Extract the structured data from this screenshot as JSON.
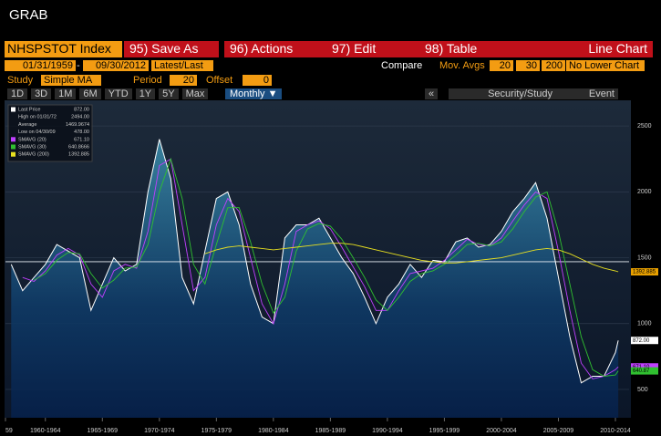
{
  "header": {
    "title": "GRAB"
  },
  "toolbar": {
    "security": "NHSPSTOT Index",
    "buttons": [
      "95) Save As",
      "96) Actions",
      "97) Edit",
      "98) Table"
    ],
    "view": "Line Chart",
    "start_date": "01/31/1959",
    "dash": "-",
    "end_date": "09/30/2012",
    "mode": "Latest/Last",
    "compare": "Compare",
    "mov_avgs": "Mov. Avgs",
    "ma_periods": [
      "20",
      "30",
      "200"
    ],
    "lower": "No Lower Chart",
    "study_label": "Study",
    "study": "Simple MA",
    "period_label": "Period",
    "period": "20",
    "offset_label": "Offset",
    "offset": "0",
    "ranges": [
      "1D",
      "3D",
      "1M",
      "6M",
      "YTD",
      "1Y",
      "5Y",
      "Max"
    ],
    "frequency": "Monthly ▼",
    "collapse": "«",
    "security_study": "Security/Study",
    "event": "Event"
  },
  "chart_data": {
    "type": "line",
    "x": [
      1959.5,
      1960.5,
      1961.5,
      1962.5,
      1963.5,
      1964.5,
      1965.5,
      1966.5,
      1967.5,
      1968.5,
      1969.5,
      1970.5,
      1971.5,
      1972.5,
      1973.5,
      1974.5,
      1975.5,
      1976.5,
      1977.5,
      1978.5,
      1979.5,
      1980.5,
      1981.5,
      1982.5,
      1983.5,
      1984.5,
      1985.5,
      1986.5,
      1987.5,
      1988.5,
      1989.5,
      1990.5,
      1991.5,
      1992.5,
      1993.5,
      1994.5,
      1995.5,
      1996.5,
      1997.5,
      1998.5,
      1999.5,
      2000.5,
      2001.5,
      2002.5,
      2003.5,
      2004.5,
      2005.5,
      2006.5,
      2007.5,
      2008.5,
      2009.5,
      2010.5,
      2011.5,
      2012.5,
      2012.75
    ],
    "series": [
      {
        "name": "Last Price",
        "color": "#ffffff",
        "values": [
          1450,
          1250,
          1350,
          1450,
          1600,
          1550,
          1500,
          1100,
          1300,
          1500,
          1400,
          1450,
          2000,
          2400,
          2100,
          1350,
          1150,
          1550,
          1950,
          2000,
          1750,
          1300,
          1050,
          1000,
          1650,
          1750,
          1750,
          1800,
          1650,
          1500,
          1380,
          1200,
          1000,
          1200,
          1300,
          1450,
          1350,
          1480,
          1470,
          1620,
          1650,
          1580,
          1600,
          1700,
          1850,
          1950,
          2070,
          1800,
          1350,
          900,
          550,
          600,
          600,
          780,
          872
        ],
        "last": "872.00"
      },
      {
        "name": "SMAVG (20)",
        "color": "#c040ff",
        "values": [
          null,
          1350,
          1320,
          1400,
          1520,
          1570,
          1520,
          1300,
          1200,
          1400,
          1450,
          1420,
          1700,
          2200,
          2250,
          1750,
          1250,
          1350,
          1750,
          1950,
          1850,
          1500,
          1150,
          1000,
          1300,
          1700,
          1750,
          1780,
          1720,
          1580,
          1430,
          1280,
          1100,
          1100,
          1250,
          1380,
          1400,
          1420,
          1480,
          1560,
          1640,
          1600,
          1590,
          1650,
          1780,
          1900,
          2000,
          1950,
          1550,
          1100,
          700,
          580,
          600,
          650,
          671.1
        ],
        "last": "671.10"
      },
      {
        "name": "SMAVG (30)",
        "color": "#30c030",
        "values": [
          null,
          null,
          1330,
          1380,
          1480,
          1540,
          1530,
          1380,
          1270,
          1330,
          1420,
          1430,
          1600,
          2000,
          2250,
          1950,
          1450,
          1300,
          1600,
          1880,
          1880,
          1620,
          1300,
          1080,
          1200,
          1550,
          1720,
          1760,
          1740,
          1640,
          1500,
          1350,
          1180,
          1100,
          1200,
          1320,
          1380,
          1400,
          1450,
          1520,
          1600,
          1610,
          1590,
          1620,
          1720,
          1850,
          1960,
          2000,
          1700,
          1300,
          900,
          650,
          600,
          610,
          640.8666
        ],
        "last": "640.8666"
      },
      {
        "name": "SMAVG (200)",
        "color": "#e8e020",
        "values": [
          null,
          null,
          null,
          null,
          null,
          null,
          null,
          null,
          null,
          null,
          null,
          null,
          null,
          null,
          null,
          null,
          null,
          1530,
          1560,
          1580,
          1590,
          1580,
          1570,
          1560,
          1570,
          1580,
          1590,
          1600,
          1610,
          1610,
          1600,
          1580,
          1560,
          1540,
          1520,
          1500,
          1480,
          1470,
          1460,
          1460,
          1470,
          1480,
          1490,
          1500,
          1520,
          1540,
          1560,
          1570,
          1560,
          1530,
          1490,
          1450,
          1420,
          1400,
          1392.885
        ],
        "last": "1392.885"
      }
    ],
    "stats": [
      {
        "label": "High on 01/31/72",
        "value": "2494.00"
      },
      {
        "label": "Average",
        "value": "1469.9674"
      },
      {
        "label": "Low on 04/30/09",
        "value": "478.00"
      }
    ],
    "average_line": 1469.9674,
    "end_tags": [
      {
        "value": 1392.885,
        "label": "1392.885",
        "color": "#e8a000"
      },
      {
        "value": 872,
        "label": "872.00",
        "color": "#ffffff"
      },
      {
        "value": 671.1,
        "label": "671.10",
        "color": "#c040ff"
      },
      {
        "value": 640.8666,
        "label": "640.87",
        "color": "#30c030"
      }
    ],
    "xlim": [
      1959,
      2013.7
    ],
    "xticks": [
      {
        "value": 1959,
        "label": "59"
      },
      {
        "value": 1962.5,
        "label": "1960-1964"
      },
      {
        "value": 1967.5,
        "label": "1965-1969"
      },
      {
        "value": 1972.5,
        "label": "1970-1974"
      },
      {
        "value": 1977.5,
        "label": "1975-1979"
      },
      {
        "value": 1982.5,
        "label": "1980-1984"
      },
      {
        "value": 1987.5,
        "label": "1985-1989"
      },
      {
        "value": 1992.5,
        "label": "1990-1994"
      },
      {
        "value": 1997.5,
        "label": "1995-1999"
      },
      {
        "value": 2002.5,
        "label": "2000-2004"
      },
      {
        "value": 2007.5,
        "label": "2005-2009"
      },
      {
        "value": 2012.5,
        "label": "2010-2014"
      }
    ],
    "ylim": [
      285,
      2695
    ],
    "yticks": [
      500,
      1000,
      1500,
      2000,
      2500
    ],
    "grid": true
  }
}
